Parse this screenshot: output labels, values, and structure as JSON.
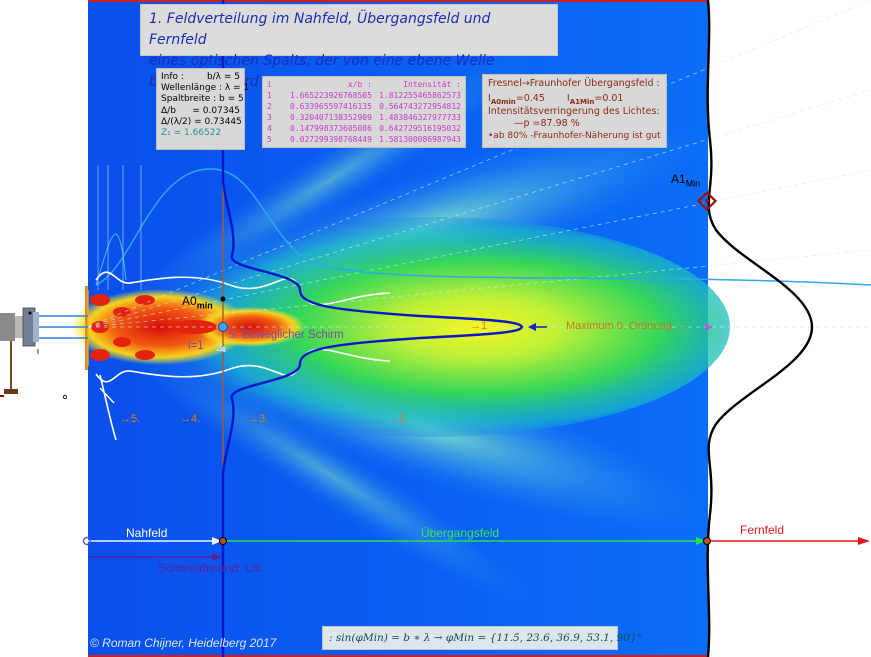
{
  "title": {
    "line1": "1. Feldverteilung im Nahfeld, Übergangsfeld und Fernfeld",
    "line2": "eines optischen Spalts, der von eine ebene Welle beleuchtet wird"
  },
  "info": {
    "rows": [
      {
        "k": "Info :",
        "v": "b/λ = 5"
      },
      {
        "k": "Wellenlänge : λ = 1",
        "v": ""
      },
      {
        "k": "Spaltbreite : b = 5",
        "v": ""
      },
      {
        "k": "Δ/b",
        "v": "= 0.07345"
      },
      {
        "k": "Δ/(λ/2) = 0.73445",
        "v": ""
      }
    ],
    "z_label": "Z₁ = 1.66522"
  },
  "table": {
    "headers": [
      "i",
      "x/b :",
      "Intensität :"
    ],
    "rows": [
      [
        "1",
        "1.665223926768505",
        "1.812255465862573"
      ],
      [
        "2",
        "0.633965597416135",
        "0.564743272954812"
      ],
      [
        "3",
        "0.320407138352909",
        "1.483846327977733"
      ],
      [
        "4",
        "0.147998373605086",
        "0.642729516195032"
      ],
      [
        "5",
        "0.027299398768449",
        "1.581300086987943"
      ]
    ]
  },
  "fresnel": {
    "title": "Fresnel→Fraunhofer Übergangsfeld :",
    "i0_label": "I",
    "i0_sub": "A0min",
    "i0_val": "=0.45",
    "i1_label": "I",
    "i1_sub": "A1Min",
    "i1_val": "=0.01",
    "line3": "Intensitätsverringerung des Lichtes:",
    "line4": "—p   =87.98  %",
    "line5": "•ab 80% -Fraunhofer-Näherung  ist gut"
  },
  "labels": {
    "a1min": "A1",
    "a1min_sub": "Min",
    "a0min": "A0",
    "a0min_sub": "min",
    "screen": "S: Beweglicher Schirm",
    "i1": "i=1",
    "z1": "Z₁",
    "maximum": "Maximum 0. Ordnung →",
    "m1": "→1",
    "m2": "→2.",
    "m3": "→3.",
    "m4": "→4.",
    "m5": "→5.",
    "nahfeld": "Nahfeld",
    "uebergang": "Übergangsfeld",
    "fernfeld": "Fernfeld",
    "schirmabstand": "Schirmabstand: L/b",
    "credit": "©  Roman Chijner, Heidelberg 2017",
    "formula": ":  sin(φMin) = b ∗ λ  →  φMin = {11.5, 23.6, 36.9, 53.1, 90}°"
  },
  "colors": {
    "field_blue": "#0a52f0",
    "field_green": "#2fd14a",
    "field_yellow": "#f3f21e",
    "field_red": "#e21d0a",
    "profile": "#0a17c8",
    "fraunhofer": "#000000",
    "screen_line": "#b3552a"
  }
}
